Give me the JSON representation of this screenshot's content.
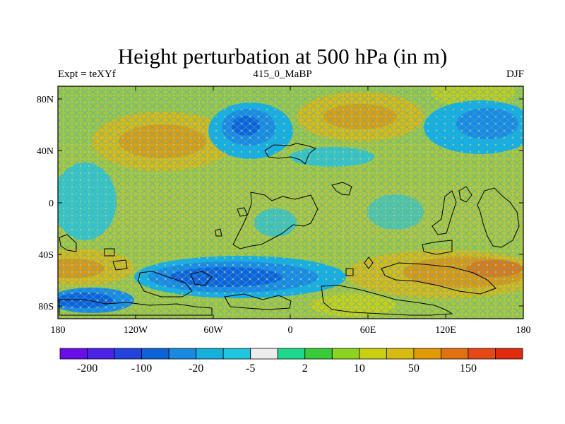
{
  "figure": {
    "title": "Height perturbation at 500 hPa (in m)",
    "left_string": "Expt = teXYf",
    "center_string": "415_0_MaBP",
    "right_string": "DJF"
  },
  "map": {
    "projection": "cylindrical equidistant",
    "lon_range": [
      -180,
      180
    ],
    "lat_range": [
      -90,
      90
    ],
    "x_ticks": [
      "180",
      "120W",
      "60W",
      "0",
      "60E",
      "120E",
      "180"
    ],
    "y_ticks": [
      "80N",
      "40N",
      "0",
      "40S",
      "80S"
    ],
    "fill_style": "cross-hatched contour fill",
    "overlay": "black land/sea outline"
  },
  "colorbar": {
    "levels": [
      "-200",
      "-100",
      "-20",
      "-5",
      "2",
      "10",
      "50",
      "150"
    ],
    "colors": [
      "#6a0ee8",
      "#4a22e8",
      "#2244dd",
      "#0e62d8",
      "#1a8ae0",
      "#16b0dd",
      "#1ec6e0",
      "#ececec",
      "#1ed88c",
      "#38cc38",
      "#8cd21e",
      "#c8d010",
      "#d8bb10",
      "#e09a08",
      "#e07010",
      "#e84818",
      "#e02a10"
    ]
  }
}
